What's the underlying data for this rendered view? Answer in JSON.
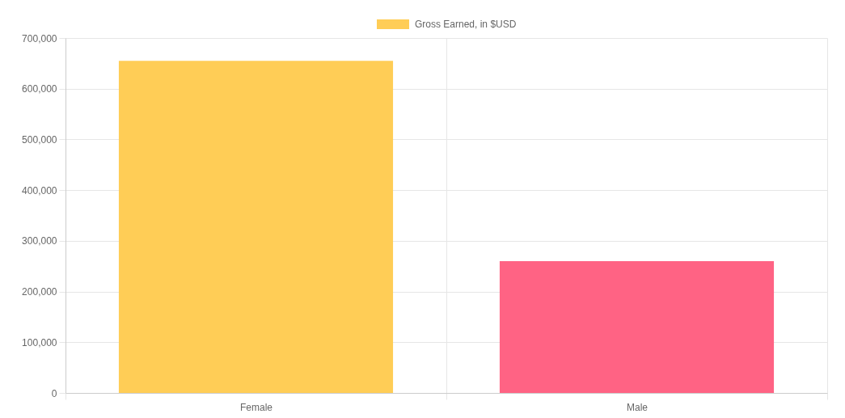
{
  "chart_data": {
    "type": "bar",
    "categories": [
      "Female",
      "Male"
    ],
    "series": [
      {
        "name": "Gross Earned, in $USD",
        "colors": [
          "#ffcd56",
          "#ff6384"
        ],
        "values": [
          655000,
          260000
        ]
      }
    ],
    "ylim": [
      0,
      700000
    ],
    "yticks": [
      {
        "value": 0,
        "label": "0"
      },
      {
        "value": 100000,
        "label": "100,000"
      },
      {
        "value": 200000,
        "label": "200,000"
      },
      {
        "value": 300000,
        "label": "300,000"
      },
      {
        "value": 400000,
        "label": "400,000"
      },
      {
        "value": 500000,
        "label": "500,000"
      },
      {
        "value": 600000,
        "label": "600,000"
      },
      {
        "value": 700000,
        "label": "700,000"
      }
    ],
    "grid": true,
    "legend": "top"
  }
}
